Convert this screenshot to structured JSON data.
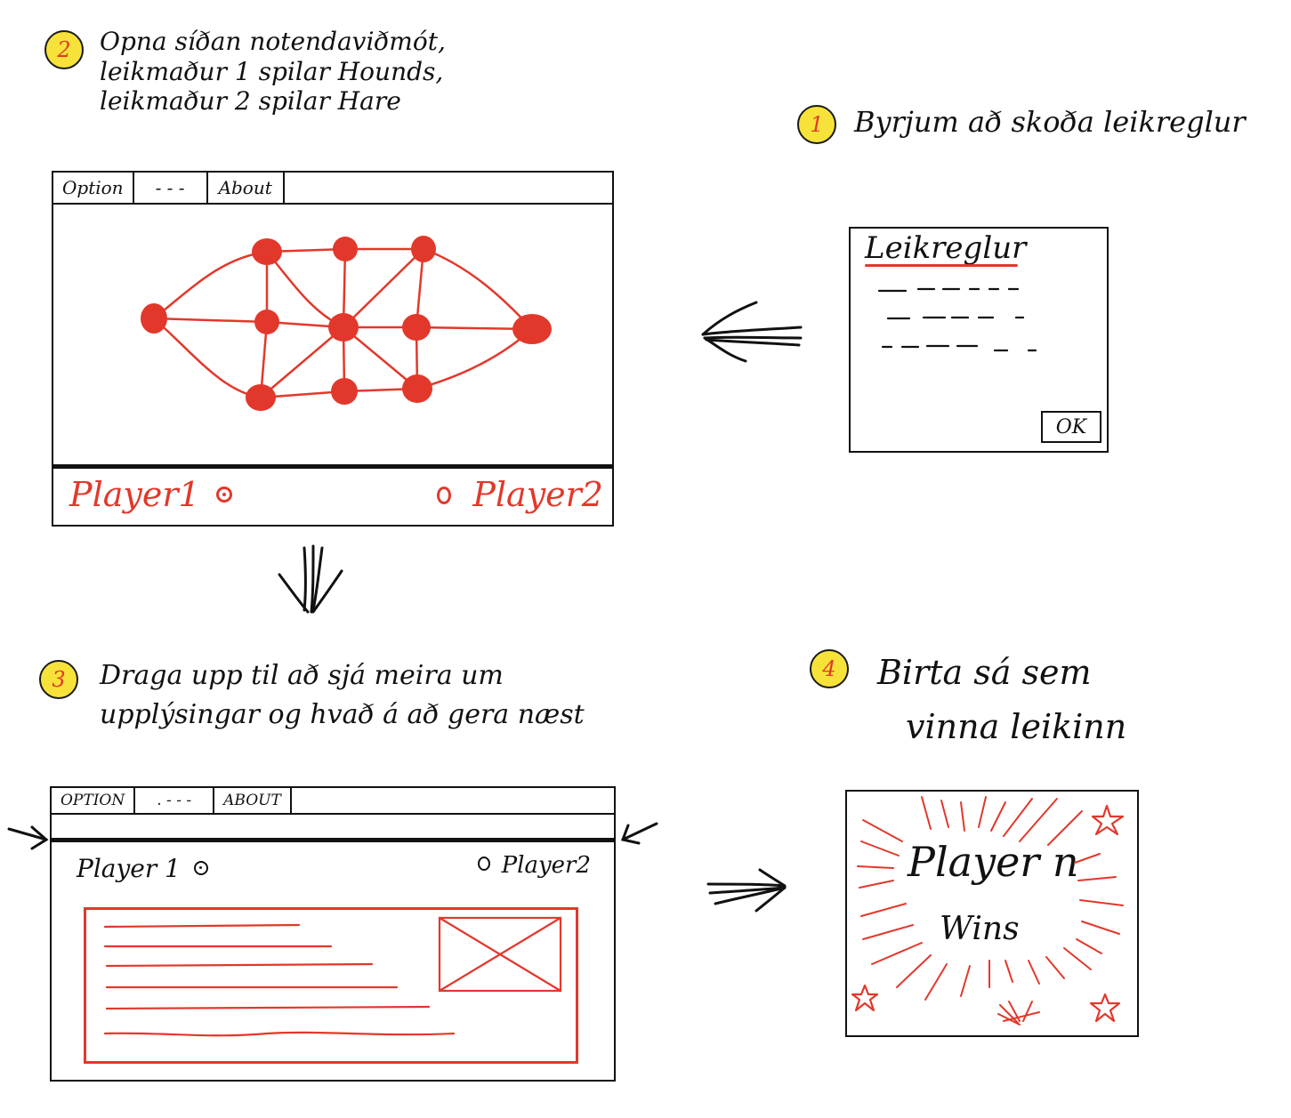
{
  "steps": [
    {
      "number": "1",
      "lines": [
        "Byrjum að skoða leikreglur"
      ]
    },
    {
      "number": "2",
      "lines": [
        "Opna síðan notendaviðmót,",
        "leikmaður 1 spilar Hounds,",
        "leikmaður 2 spilar Hare"
      ]
    },
    {
      "number": "3",
      "lines": [
        "Draga upp til að sjá meira um",
        "upplýsingar og hvað á að gera næst"
      ]
    },
    {
      "number": "4",
      "lines": [
        "Birta sá sem",
        "vinna leikinn"
      ]
    }
  ],
  "rules_dialog": {
    "title": "Leikreglur",
    "ok_label": "OK"
  },
  "game_window": {
    "menu": [
      "Option",
      "- - -",
      "About"
    ],
    "player1": "Player1",
    "player2": "Player2"
  },
  "info_window": {
    "menu": [
      "OPTION",
      ". - - -",
      "ABOUT"
    ],
    "player1": "Player 1",
    "player2": "Player2"
  },
  "win_screen": {
    "line1": "Player n",
    "line2": "Wins"
  },
  "colors": {
    "accent": "#e2382b",
    "badge": "#f7e23a",
    "ink": "#111111"
  },
  "icons": [
    "arrow-left-icon",
    "arrow-down-icon",
    "arrow-right-icon",
    "arrow-inward-icon",
    "star-icon",
    "radio-circle-icon"
  ]
}
